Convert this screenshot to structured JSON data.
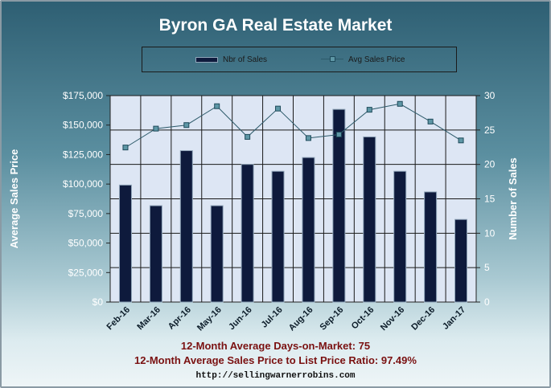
{
  "chart_data": {
    "type": "bar",
    "title": "Byron  GA Real Estate Market",
    "categories": [
      "Feb-16",
      "Mar-16",
      "Apr-16",
      "May-16",
      "Jun-16",
      "Jul-16",
      "Aug-16",
      "Sep-16",
      "Oct-16",
      "Nov-16",
      "Dec-16",
      "Jan-17"
    ],
    "series": [
      {
        "name": "Nbr of Sales",
        "type": "bar",
        "axis": "right",
        "values": [
          17,
          14,
          22,
          14,
          20,
          19,
          21,
          28,
          24,
          19,
          16,
          12
        ]
      },
      {
        "name": "Avg Sales Price",
        "type": "line",
        "axis": "left",
        "values": [
          131000,
          147000,
          150000,
          166000,
          140000,
          164000,
          139000,
          142000,
          163000,
          168000,
          153000,
          137000
        ]
      }
    ],
    "ylabel_left": "Average Sales Price",
    "ylabel_right": "Number of Sales",
    "ylim_left": [
      0,
      175000
    ],
    "ylim_right": [
      0,
      30
    ],
    "yticks_left": [
      "$0",
      "$25,000",
      "$50,000",
      "$75,000",
      "$100,000",
      "$125,000",
      "$150,000",
      "$175,000"
    ],
    "yticks_right": [
      "0",
      "5",
      "10",
      "15",
      "20",
      "25",
      "30"
    ],
    "grid": true,
    "legend_position": "top",
    "colors": {
      "bar": "#0e1a3c",
      "bar_edge": "#8fa4b8",
      "line": "#2d5a6a",
      "marker": "#5e97a6",
      "plot_bg": "#dde6f4",
      "grid": "#1a1a1a"
    }
  },
  "footer": {
    "line1": "12-Month Average Days-on-Market: 75",
    "line2": "12-Month Average Sales Price to List Price Ratio: 97.49%",
    "url": "http://sellingwarnerrobins.com"
  }
}
